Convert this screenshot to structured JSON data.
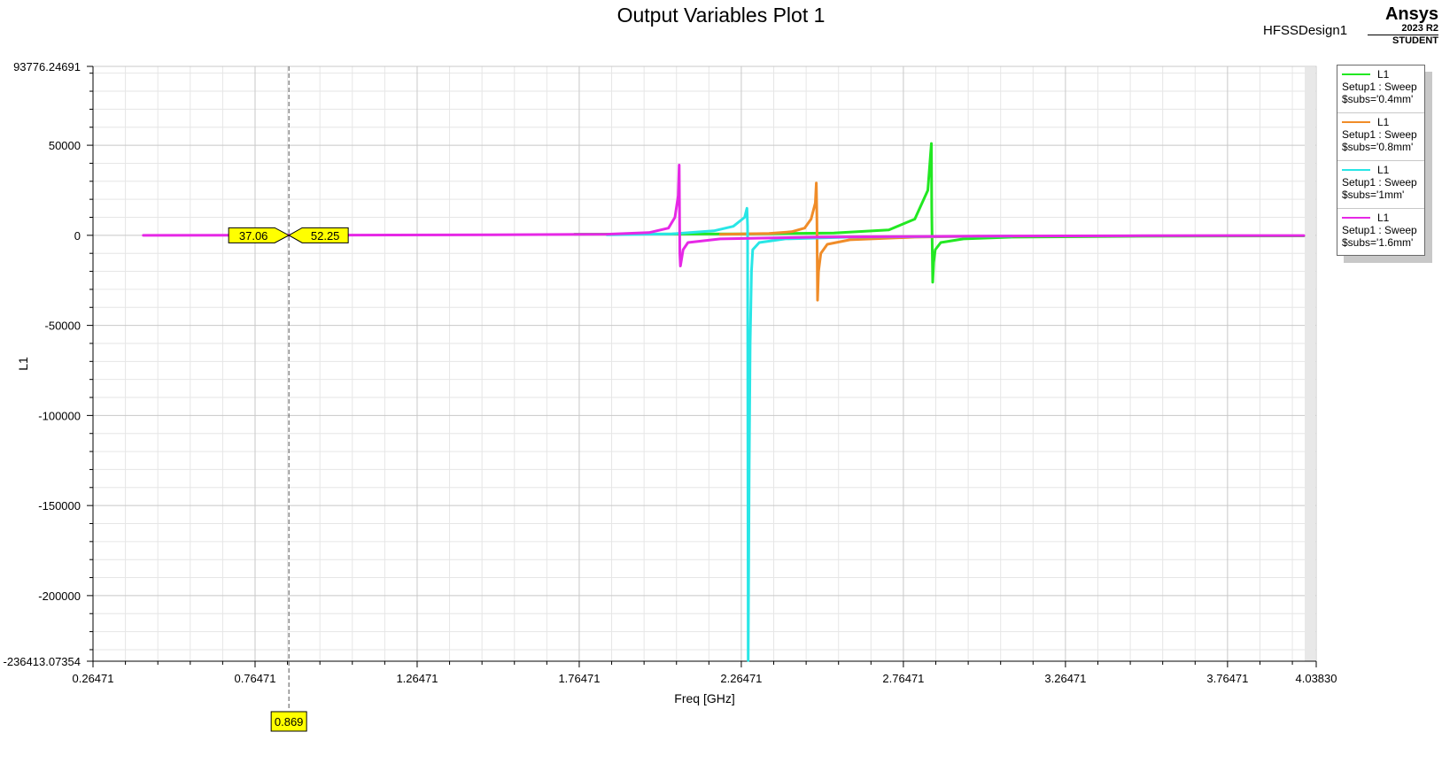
{
  "header": {
    "title": "Output Variables Plot 1",
    "design_name": "HFSSDesign1",
    "brand_name": "Ansys",
    "brand_version": "2023 R2",
    "brand_edition": "STUDENT"
  },
  "marker": {
    "freq_label": "0.869",
    "freq": 0.869,
    "values": [
      "37.06",
      "52.25"
    ],
    "fill_color": "#ffff00"
  },
  "colors": {
    "grid_major": "#c8c8c8",
    "grid_minor": "#e6e6e6",
    "axis": "#000000",
    "background": "#ffffff"
  },
  "chart_data": {
    "type": "line",
    "title": "Output Variables Plot 1",
    "xlabel": "Freq [GHz]",
    "ylabel": "L1",
    "xlim": [
      0.26471,
      4.0383
    ],
    "ylim": [
      -236413.07354,
      93776.24691
    ],
    "xticks": [
      0.26471,
      0.76471,
      1.26471,
      1.76471,
      2.26471,
      2.76471,
      3.26471,
      3.76471,
      4.0383
    ],
    "xtick_labels": [
      "0.26471",
      "0.76471",
      "1.26471",
      "1.76471",
      "2.26471",
      "2.76471",
      "3.26471",
      "3.76471",
      "4.03830"
    ],
    "yticks": [
      93776.24691,
      50000,
      0,
      -50000,
      -100000,
      -150000,
      -200000,
      -236413.07354
    ],
    "ytick_labels": [
      "93776.24691",
      "50000",
      "0",
      "-50000",
      "-100000",
      "-150000",
      "-200000",
      "-236413.07354"
    ],
    "grid": true,
    "legend_position": "top-right",
    "series": [
      {
        "name": "L1 Setup1 : Sweep $subs='0.4mm'",
        "legend_lines": [
          "L1",
          "Setup1 : Sweep",
          "$subs='0.4mm'"
        ],
        "color": "#22e822",
        "x": [
          1.75,
          2.3,
          2.55,
          2.72,
          2.8,
          2.84,
          2.851,
          2.852,
          2.855,
          2.858,
          2.863,
          2.88,
          2.95,
          3.1,
          3.5,
          4.0
        ],
        "y": [
          600,
          800,
          1300,
          3000,
          9000,
          25000,
          51000,
          15000,
          -26000,
          -15000,
          -8000,
          -4000,
          -2000,
          -1000,
          -500,
          -300
        ]
      },
      {
        "name": "L1 Setup1 : Sweep $subs='0.8mm'",
        "legend_lines": [
          "L1",
          "Setup1 : Sweep",
          "$subs='0.8mm'"
        ],
        "color": "#f08c28",
        "x": [
          2.2,
          2.35,
          2.42,
          2.46,
          2.48,
          2.493,
          2.496,
          2.498,
          2.5,
          2.503,
          2.51,
          2.53,
          2.6,
          2.8,
          3.0
        ],
        "y": [
          500,
          1000,
          2000,
          4000,
          9000,
          18000,
          29000,
          8000,
          -36000,
          -20000,
          -10000,
          -5000,
          -2500,
          -1000,
          -500
        ]
      },
      {
        "name": "L1 Setup1 : Sweep $subs='1mm'",
        "legend_lines": [
          "L1",
          "Setup1 : Sweep",
          "$subs='1mm'"
        ],
        "color": "#28e6e6",
        "x": [
          1.85,
          2.05,
          2.18,
          2.24,
          2.275,
          2.282,
          2.284,
          2.286,
          2.289,
          2.292,
          2.296,
          2.3,
          2.32,
          2.4,
          2.6,
          3.1
        ],
        "y": [
          300,
          800,
          2500,
          5000,
          10000,
          15000,
          5000,
          -236000,
          -130000,
          -60000,
          -20000,
          -8000,
          -4000,
          -2000,
          -1000,
          -400
        ]
      },
      {
        "name": "L1 Setup1 : Sweep $subs='1.6mm'",
        "legend_lines": [
          "L1",
          "Setup1 : Sweep",
          "$subs='1.6mm'"
        ],
        "color": "#e628e6",
        "x": [
          0.42,
          1.0,
          1.5,
          1.85,
          1.98,
          2.04,
          2.06,
          2.07,
          2.073,
          2.075,
          2.077,
          2.085,
          2.1,
          2.2,
          2.5,
          3.0,
          3.5,
          4.0
        ],
        "y": [
          0,
          100,
          250,
          600,
          1500,
          4000,
          10000,
          22000,
          39000,
          -10000,
          -17000,
          -8000,
          -4000,
          -2000,
          -1000,
          -400,
          -200,
          -100
        ]
      }
    ]
  }
}
